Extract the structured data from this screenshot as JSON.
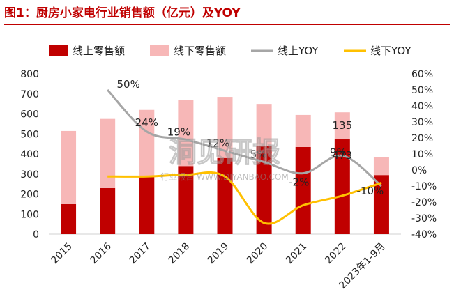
{
  "title": "图1：厨房小家电行业销售额（亿元）及YOY",
  "colors": {
    "title": "#c00000",
    "online_bar": "#c00000",
    "offline_bar": "#f7b7b7",
    "online_yoy_line": "#a6a6a6",
    "offline_yoy_line": "#ffc000"
  },
  "legend": [
    {
      "label": "线上零售额",
      "kind": "bar",
      "color": "#c00000"
    },
    {
      "label": "线下零售额",
      "kind": "bar",
      "color": "#f7b7b7"
    },
    {
      "label": "线上YOY",
      "kind": "line",
      "color": "#a6a6a6"
    },
    {
      "label": "线下YOY",
      "kind": "line",
      "color": "#ffc000"
    }
  ],
  "watermark": {
    "main": "洞见研报",
    "sub": "行业报告 WWW.DJYANBAO.COM"
  },
  "chart_data": {
    "type": "bar",
    "categories": [
      "2015",
      "2016",
      "2017",
      "2018",
      "2019",
      "2020",
      "2021",
      "2022",
      "2023年1-9月"
    ],
    "stacked": true,
    "series": [
      {
        "name": "线上零售额",
        "type": "bar",
        "axis": "left",
        "values": [
          150,
          230,
          285,
          340,
          380,
          440,
          435,
          473,
          295
        ]
      },
      {
        "name": "线下零售额",
        "type": "bar",
        "axis": "left",
        "values": [
          365,
          345,
          335,
          330,
          305,
          210,
          160,
          135,
          90
        ]
      },
      {
        "name": "线上YOY",
        "type": "line",
        "axis": "right",
        "unit": "%",
        "values": [
          null,
          50,
          24,
          19,
          12,
          5,
          -2,
          9,
          -10
        ]
      },
      {
        "name": "线下YOY",
        "type": "line",
        "axis": "right",
        "unit": "%",
        "values": [
          null,
          -4,
          -4,
          -3,
          -4,
          -33,
          -22,
          -16,
          -8
        ]
      }
    ],
    "data_labels": [
      {
        "series": "线上YOY",
        "category": "2016",
        "text": "50%"
      },
      {
        "series": "线上YOY",
        "category": "2017",
        "text": "24%"
      },
      {
        "series": "线上YOY",
        "category": "2018",
        "text": "19%"
      },
      {
        "series": "线上YOY",
        "category": "2019",
        "text": "12%"
      },
      {
        "series": "线上YOY",
        "category": "2020",
        "text": "5%"
      },
      {
        "series": "线上YOY",
        "category": "2021",
        "text": "-2%"
      },
      {
        "series": "线上YOY",
        "category": "2022",
        "text": "9%"
      },
      {
        "series": "线上YOY",
        "category": "2023年1-9月",
        "text": "-10%"
      },
      {
        "series": "线下零售额",
        "category": "2022",
        "text": "135"
      },
      {
        "series": "线上零售额",
        "category": "2022",
        "text": "473"
      }
    ],
    "y_left": {
      "min": 0,
      "max": 800,
      "ticks": [
        "0",
        "100",
        "200",
        "300",
        "400",
        "500",
        "600",
        "700",
        "800"
      ]
    },
    "y_right": {
      "min": -40,
      "max": 60,
      "ticks": [
        "-40%",
        "-30%",
        "-20%",
        "-10%",
        "0%",
        "10%",
        "20%",
        "30%",
        "40%",
        "50%",
        "60%"
      ]
    },
    "legend_position": "top",
    "grid": false
  }
}
